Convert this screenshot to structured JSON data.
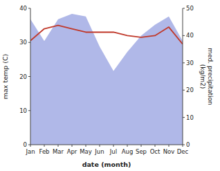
{
  "chart_data": {
    "type": "line",
    "xlabel": "date (month)",
    "ylabel": "max temp (C)",
    "y2label": "med. precipitation\n(kg/m2)",
    "categories": [
      "Jan",
      "Feb",
      "Mar",
      "Apr",
      "May",
      "Jun",
      "Jul",
      "Aug",
      "Sep",
      "Oct",
      "Nov",
      "Dec"
    ],
    "series": [
      {
        "type": "area",
        "axis": "y2",
        "color": "#b0b8e8",
        "values": [
          46,
          38,
          46,
          48,
          47,
          36,
          27,
          34,
          40,
          44,
          47,
          38
        ]
      },
      {
        "type": "line",
        "color": "#c0392b",
        "values": [
          30.5,
          34.0,
          35.0,
          34.0,
          33.0,
          33.0,
          33.0,
          32.0,
          31.5,
          32.0,
          34.5,
          29.5
        ]
      }
    ],
    "ylim": [
      0,
      40
    ],
    "yticks": [
      0,
      10,
      20,
      30,
      40
    ],
    "y2lim": [
      0,
      50
    ],
    "y2ticks": [
      0,
      10,
      20,
      30,
      40,
      50
    ]
  }
}
